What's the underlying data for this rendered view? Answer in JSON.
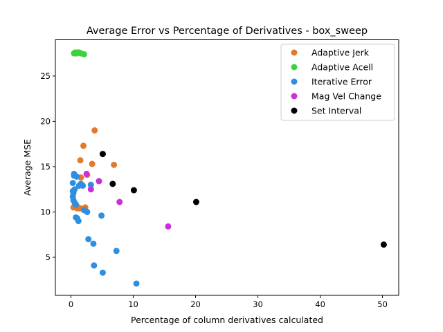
{
  "chart_data": {
    "type": "scatter",
    "title": "Average Error vs Percentage of Derivatives - box_sweep",
    "xlabel": "Percentage of column derivatives calculated",
    "ylabel": "Average MSE",
    "xlim": [
      -2.5,
      52.6
    ],
    "ylim": [
      0.8,
      29.0
    ],
    "xticks": [
      0,
      10,
      20,
      30,
      40,
      50
    ],
    "yticks": [
      5,
      10,
      15,
      20,
      25
    ],
    "grid": false,
    "legend_position": "top-right",
    "series": [
      {
        "name": "Adaptive Jerk",
        "color": "#e07a2e",
        "points": [
          [
            0.4,
            10.5
          ],
          [
            0.6,
            10.6
          ],
          [
            0.8,
            10.5
          ],
          [
            1.0,
            10.4
          ],
          [
            1.2,
            10.5
          ],
          [
            1.4,
            10.4
          ],
          [
            1.5,
            15.7
          ],
          [
            1.6,
            13.8
          ],
          [
            2.0,
            17.3
          ],
          [
            2.1,
            10.4
          ],
          [
            2.3,
            10.5
          ],
          [
            2.6,
            14.1
          ],
          [
            3.4,
            15.3
          ],
          [
            3.8,
            19.0
          ],
          [
            6.9,
            15.2
          ]
        ]
      },
      {
        "name": "Adaptive Acell",
        "color": "#3cd23c",
        "points": [
          [
            0.5,
            27.5
          ],
          [
            0.7,
            27.6
          ],
          [
            0.9,
            27.5
          ],
          [
            1.1,
            27.6
          ],
          [
            1.3,
            27.6
          ],
          [
            1.6,
            27.5
          ],
          [
            2.1,
            27.4
          ]
        ]
      },
      {
        "name": "Iterative Error",
        "color": "#2e8fe0",
        "points": [
          [
            0.3,
            13.2
          ],
          [
            0.3,
            12.3
          ],
          [
            0.4,
            12.1
          ],
          [
            0.3,
            11.7
          ],
          [
            0.4,
            11.3
          ],
          [
            0.5,
            14.2
          ],
          [
            0.5,
            14.0
          ],
          [
            0.6,
            12.5
          ],
          [
            0.6,
            11.0
          ],
          [
            0.8,
            10.8
          ],
          [
            0.8,
            9.4
          ],
          [
            0.9,
            13.9
          ],
          [
            1.0,
            9.3
          ],
          [
            1.2,
            9.0
          ],
          [
            1.3,
            12.9
          ],
          [
            1.6,
            13.1
          ],
          [
            1.9,
            12.9
          ],
          [
            2.1,
            10.2
          ],
          [
            2.6,
            10.0
          ],
          [
            2.8,
            7.0
          ],
          [
            3.2,
            13.0
          ],
          [
            3.6,
            6.5
          ],
          [
            3.7,
            4.1
          ],
          [
            4.9,
            9.6
          ],
          [
            5.1,
            3.3
          ],
          [
            7.3,
            5.7
          ],
          [
            10.5,
            2.1
          ]
        ]
      },
      {
        "name": "Mag Vel Change",
        "color": "#cc2ed9",
        "points": [
          [
            2.5,
            14.2
          ],
          [
            3.2,
            12.5
          ],
          [
            4.5,
            13.4
          ],
          [
            7.8,
            11.1
          ],
          [
            15.6,
            8.4
          ]
        ]
      },
      {
        "name": "Set Interval",
        "color": "#000000",
        "points": [
          [
            5.1,
            16.4
          ],
          [
            6.7,
            13.1
          ],
          [
            10.1,
            12.4
          ],
          [
            20.1,
            11.1
          ],
          [
            50.2,
            6.4
          ]
        ]
      }
    ]
  }
}
